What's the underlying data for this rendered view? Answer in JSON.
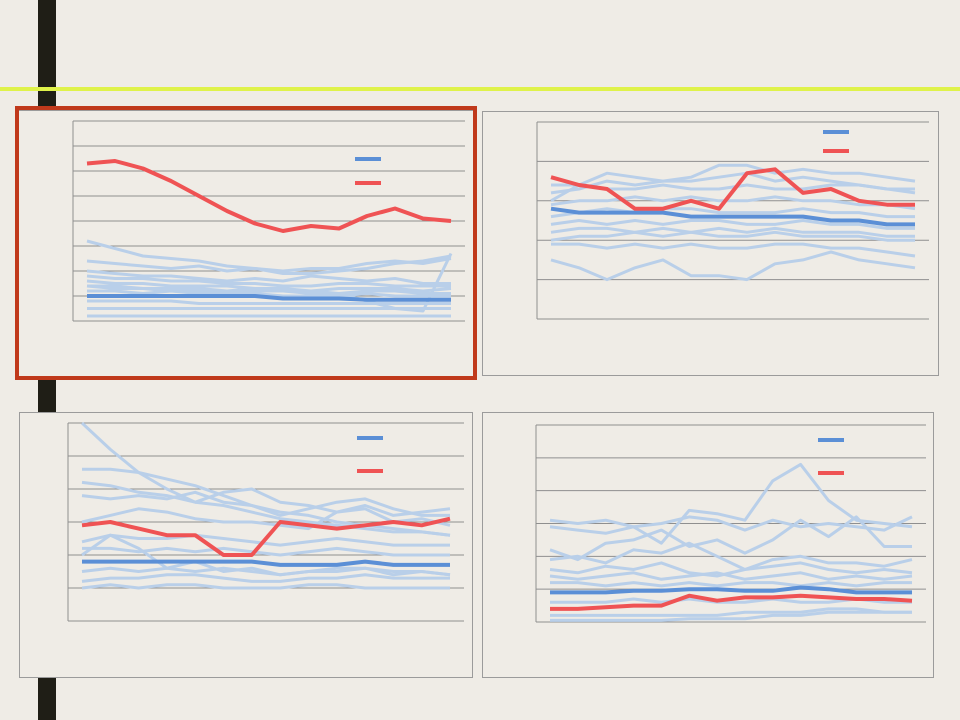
{
  "colors": {
    "average": "#5b8fd6",
    "highlight": "#ef5354",
    "other": "#b9cfe9",
    "grid": "#8f8f8f",
    "frame": "#c0391b"
  },
  "chart_data": [
    {
      "type": "line",
      "grid": true,
      "legend": "top-right",
      "ylim": [
        0,
        8
      ],
      "x": [
        1,
        2,
        3,
        4,
        5,
        6,
        7,
        8,
        9,
        10,
        11,
        12,
        13,
        14
      ],
      "series": [
        {
          "role": "highlight",
          "values": [
            6.3,
            6.4,
            6.1,
            5.6,
            5.0,
            4.4,
            3.9,
            3.6,
            3.8,
            3.7,
            4.2,
            4.5,
            4.1,
            4.0
          ]
        },
        {
          "role": "average",
          "values": [
            1.0,
            1.0,
            1.0,
            1.0,
            1.0,
            1.0,
            1.0,
            0.9,
            0.9,
            0.9,
            0.85,
            0.85,
            0.85,
            0.85
          ]
        }
      ],
      "others": [
        [
          3.2,
          2.9,
          2.6,
          2.5,
          2.4,
          2.2,
          2.1,
          2.0,
          2.1,
          2.1,
          2.3,
          2.4,
          2.3,
          2.5
        ],
        [
          2.4,
          2.3,
          2.2,
          2.1,
          2.2,
          2.0,
          2.1,
          1.9,
          1.9,
          2.0,
          2.1,
          2.3,
          2.4,
          2.6
        ],
        [
          2.0,
          1.9,
          1.8,
          1.8,
          1.7,
          1.6,
          1.7,
          1.6,
          1.8,
          1.7,
          1.6,
          1.7,
          1.5,
          1.5
        ],
        [
          1.8,
          1.7,
          1.7,
          1.6,
          1.6,
          1.5,
          1.5,
          1.4,
          1.4,
          1.5,
          1.5,
          1.4,
          1.4,
          1.4
        ],
        [
          1.6,
          1.5,
          1.5,
          1.4,
          1.4,
          1.4,
          1.3,
          1.3,
          1.2,
          1.3,
          1.3,
          1.3,
          1.2,
          1.3
        ],
        [
          1.4,
          1.4,
          1.3,
          1.3,
          1.3,
          1.2,
          1.2,
          1.2,
          1.1,
          1.1,
          1.2,
          1.2,
          1.1,
          1.1
        ],
        [
          1.2,
          1.2,
          1.1,
          1.2,
          1.1,
          1.1,
          1.1,
          1.0,
          1.0,
          1.0,
          1.1,
          1.0,
          1.0,
          1.0
        ],
        [
          0.8,
          0.8,
          0.8,
          0.8,
          0.7,
          0.7,
          0.7,
          0.7,
          0.7,
          0.7,
          0.7,
          0.7,
          0.7,
          0.7
        ],
        [
          0.5,
          0.5,
          0.5,
          0.5,
          0.5,
          0.5,
          0.5,
          0.5,
          0.5,
          0.5,
          0.5,
          0.5,
          0.5,
          0.5
        ],
        [
          0.2,
          0.2,
          0.2,
          0.2,
          0.2,
          0.2,
          0.2,
          0.2,
          0.2,
          0.2,
          0.2,
          0.2,
          0.2,
          0.2
        ],
        [
          1.4,
          1.3,
          1.3,
          1.2,
          1.2,
          1.2,
          1.3,
          1.2,
          1.2,
          1.1,
          0.8,
          0.5,
          0.4,
          2.7
        ]
      ]
    },
    {
      "type": "line",
      "grid": true,
      "legend": "top-right",
      "ylim": [
        0,
        5
      ],
      "x": [
        1,
        2,
        3,
        4,
        5,
        6,
        7,
        8,
        9,
        10,
        11,
        12,
        13,
        14
      ],
      "series": [
        {
          "role": "highlight",
          "values": [
            3.6,
            3.4,
            3.3,
            2.8,
            2.8,
            3.0,
            2.8,
            3.7,
            3.8,
            3.2,
            3.3,
            3.0,
            2.9,
            2.9
          ]
        },
        {
          "role": "average",
          "values": [
            2.8,
            2.7,
            2.7,
            2.7,
            2.7,
            2.6,
            2.6,
            2.6,
            2.6,
            2.6,
            2.5,
            2.5,
            2.4,
            2.4
          ]
        }
      ],
      "others": [
        [
          3.0,
          3.4,
          3.7,
          3.6,
          3.5,
          3.6,
          3.9,
          3.9,
          3.7,
          3.8,
          3.7,
          3.7,
          3.6,
          3.5
        ],
        [
          3.2,
          3.3,
          3.5,
          3.4,
          3.5,
          3.5,
          3.6,
          3.7,
          3.5,
          3.6,
          3.5,
          3.4,
          3.3,
          3.2
        ],
        [
          3.4,
          3.4,
          3.3,
          3.3,
          3.4,
          3.3,
          3.3,
          3.4,
          3.3,
          3.3,
          3.4,
          3.4,
          3.3,
          3.3
        ],
        [
          2.9,
          3.0,
          3.0,
          3.1,
          3.0,
          3.1,
          3.0,
          3.0,
          3.1,
          3.0,
          3.0,
          2.9,
          2.9,
          2.8
        ],
        [
          2.6,
          2.7,
          2.8,
          2.7,
          2.8,
          2.8,
          2.7,
          2.7,
          2.7,
          2.8,
          2.7,
          2.7,
          2.6,
          2.6
        ],
        [
          2.4,
          2.5,
          2.4,
          2.5,
          2.4,
          2.5,
          2.5,
          2.4,
          2.4,
          2.5,
          2.4,
          2.4,
          2.3,
          2.3
        ],
        [
          2.2,
          2.3,
          2.3,
          2.2,
          2.3,
          2.2,
          2.3,
          2.2,
          2.3,
          2.2,
          2.2,
          2.2,
          2.1,
          2.1
        ],
        [
          2.0,
          2.1,
          2.1,
          2.2,
          2.1,
          2.2,
          2.1,
          2.1,
          2.2,
          2.1,
          2.1,
          2.1,
          2.0,
          2.0
        ],
        [
          1.5,
          1.3,
          1.0,
          1.3,
          1.5,
          1.1,
          1.1,
          1.0,
          1.4,
          1.5,
          1.7,
          1.5,
          1.4,
          1.3
        ],
        [
          1.9,
          1.9,
          1.8,
          1.9,
          1.8,
          1.9,
          1.8,
          1.8,
          1.9,
          1.9,
          1.8,
          1.8,
          1.7,
          1.6
        ]
      ]
    },
    {
      "type": "line",
      "grid": true,
      "legend": "top-right",
      "ylim": [
        0,
        6
      ],
      "x": [
        1,
        2,
        3,
        4,
        5,
        6,
        7,
        8,
        9,
        10,
        11,
        12,
        13,
        14
      ],
      "series": [
        {
          "role": "highlight",
          "values": [
            2.9,
            3.0,
            2.8,
            2.6,
            2.6,
            2.0,
            2.0,
            3.0,
            2.9,
            2.8,
            2.9,
            3.0,
            2.9,
            3.1
          ]
        },
        {
          "role": "average",
          "values": [
            1.8,
            1.8,
            1.8,
            1.8,
            1.8,
            1.8,
            1.8,
            1.7,
            1.7,
            1.7,
            1.8,
            1.7,
            1.7,
            1.7
          ]
        }
      ],
      "others": [
        [
          6.0,
          5.2,
          4.5,
          4.0,
          3.6,
          3.5,
          3.3,
          3.1,
          3.0,
          2.9,
          2.8,
          2.7,
          2.7,
          2.6
        ],
        [
          4.6,
          4.6,
          4.5,
          4.3,
          4.1,
          3.8,
          3.5,
          3.3,
          3.2,
          3.0,
          2.9,
          2.8,
          2.7,
          2.6
        ],
        [
          4.2,
          4.1,
          3.9,
          3.8,
          3.6,
          3.9,
          4.0,
          3.6,
          3.5,
          3.3,
          3.5,
          3.2,
          3.3,
          3.4
        ],
        [
          3.8,
          3.7,
          3.8,
          3.7,
          3.9,
          3.6,
          3.5,
          3.2,
          3.4,
          3.6,
          3.7,
          3.4,
          3.2,
          3.2
        ],
        [
          3.0,
          3.2,
          3.4,
          3.3,
          3.1,
          3.0,
          3.0,
          2.9,
          2.8,
          3.3,
          3.4,
          3.0,
          3.1,
          2.9
        ],
        [
          2.4,
          2.6,
          2.5,
          2.5,
          2.6,
          2.5,
          2.4,
          2.3,
          2.4,
          2.5,
          2.4,
          2.3,
          2.3,
          2.3
        ],
        [
          2.2,
          2.2,
          2.1,
          2.2,
          2.1,
          2.2,
          2.1,
          2.0,
          2.1,
          2.2,
          2.1,
          2.0,
          2.0,
          2.0
        ],
        [
          2.0,
          2.6,
          2.2,
          1.6,
          1.8,
          1.5,
          1.6,
          1.4,
          1.5,
          1.6,
          1.6,
          1.5,
          1.5,
          1.4
        ],
        [
          1.5,
          1.6,
          1.5,
          1.6,
          1.5,
          1.6,
          1.5,
          1.4,
          1.5,
          1.5,
          1.6,
          1.4,
          1.5,
          1.4
        ],
        [
          1.2,
          1.3,
          1.3,
          1.4,
          1.4,
          1.3,
          1.2,
          1.2,
          1.3,
          1.3,
          1.4,
          1.3,
          1.3,
          1.3
        ],
        [
          1.0,
          1.1,
          1.0,
          1.1,
          1.1,
          1.0,
          1.0,
          1.0,
          1.1,
          1.1,
          1.0,
          1.0,
          1.0,
          1.0
        ]
      ]
    },
    {
      "type": "line",
      "grid": true,
      "legend": "top-right",
      "ylim": [
        0,
        6
      ],
      "x": [
        1,
        2,
        3,
        4,
        5,
        6,
        7,
        8,
        9,
        10,
        11,
        12,
        13,
        14
      ],
      "series": [
        {
          "role": "highlight",
          "values": [
            0.4,
            0.4,
            0.45,
            0.5,
            0.5,
            0.8,
            0.65,
            0.75,
            0.75,
            0.8,
            0.75,
            0.7,
            0.7,
            0.65
          ]
        },
        {
          "role": "average",
          "values": [
            0.9,
            0.9,
            0.9,
            0.95,
            0.95,
            1.0,
            1.0,
            0.95,
            0.95,
            1.05,
            1.0,
            0.9,
            0.9,
            0.9
          ]
        }
      ],
      "others": [
        [
          3.1,
          3.0,
          3.1,
          2.9,
          3.0,
          3.2,
          3.1,
          2.8,
          3.1,
          2.9,
          3.0,
          2.9,
          2.8,
          3.2
        ],
        [
          2.9,
          2.8,
          2.7,
          2.9,
          2.4,
          3.4,
          3.3,
          3.1,
          4.3,
          4.8,
          3.7,
          3.1,
          3.0,
          2.9
        ],
        [
          2.2,
          1.9,
          2.4,
          2.5,
          2.8,
          2.3,
          2.5,
          2.1,
          2.5,
          3.1,
          2.6,
          3.2,
          2.3,
          2.3
        ],
        [
          1.9,
          2.0,
          1.8,
          2.2,
          2.1,
          2.4,
          2.0,
          1.6,
          1.9,
          2.0,
          1.8,
          1.8,
          1.7,
          1.9
        ],
        [
          1.6,
          1.5,
          1.7,
          1.6,
          1.8,
          1.5,
          1.4,
          1.6,
          1.7,
          1.8,
          1.6,
          1.5,
          1.6,
          1.5
        ],
        [
          1.4,
          1.3,
          1.4,
          1.5,
          1.3,
          1.4,
          1.5,
          1.3,
          1.4,
          1.5,
          1.3,
          1.4,
          1.3,
          1.4
        ],
        [
          1.2,
          1.2,
          1.1,
          1.2,
          1.1,
          1.2,
          1.1,
          1.2,
          1.2,
          1.1,
          1.2,
          1.1,
          1.2,
          1.2
        ],
        [
          0.6,
          0.6,
          0.6,
          0.7,
          0.6,
          0.7,
          0.6,
          0.6,
          0.7,
          0.6,
          0.6,
          0.7,
          0.6,
          0.6
        ],
        [
          0.2,
          0.2,
          0.2,
          0.2,
          0.2,
          0.2,
          0.2,
          0.3,
          0.3,
          0.3,
          0.4,
          0.4,
          0.3,
          0.3
        ],
        [
          0.05,
          0.05,
          0.05,
          0.05,
          0.05,
          0.1,
          0.1,
          0.1,
          0.2,
          0.2,
          0.3,
          0.3,
          0.3,
          0.3
        ]
      ]
    }
  ]
}
